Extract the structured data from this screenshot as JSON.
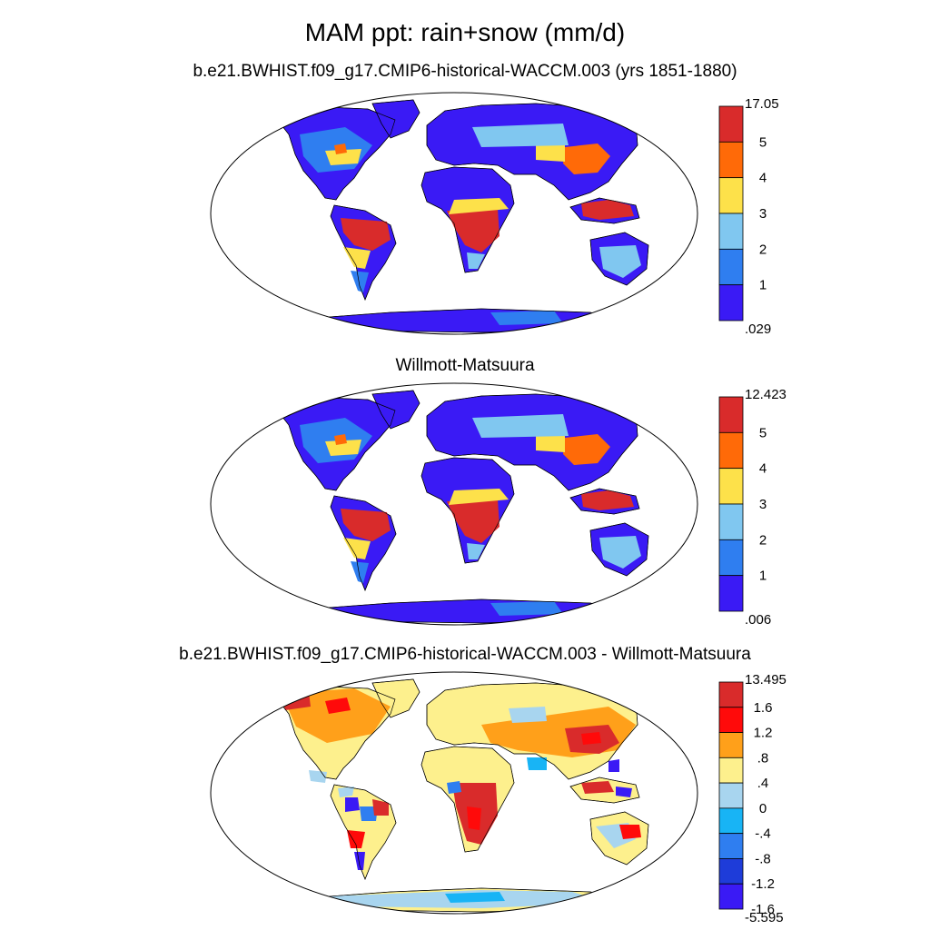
{
  "title": "MAM ppt: rain+snow (mm/d)",
  "panels": [
    {
      "title": "b.e21.BWHIST.f09_g17.CMIP6-historical-WACCM.003 (yrs 1851-1880)",
      "kind": "abs",
      "colorbar": {
        "colors": [
          "#3a1af5",
          "#2f7ef0",
          "#80c7f0",
          "#fde14a",
          "#ff6a08",
          "#d92b2b"
        ],
        "labels": [
          "17.05",
          "5",
          "4",
          "3",
          "2",
          "1",
          ".029"
        ]
      }
    },
    {
      "title": "Willmott-Matsuura",
      "kind": "abs",
      "colorbar": {
        "colors": [
          "#3a1af5",
          "#2f7ef0",
          "#80c7f0",
          "#fde14a",
          "#ff6a08",
          "#d92b2b"
        ],
        "labels": [
          "12.423",
          "5",
          "4",
          "3",
          "2",
          "1",
          ".006"
        ]
      }
    },
    {
      "title": "b.e21.BWHIST.f09_g17.CMIP6-historical-WACCM.003 - Willmott-Matsuura",
      "kind": "diff",
      "colorbar": {
        "colors": [
          "#3a1af5",
          "#1e3cd9",
          "#2f7ef0",
          "#18b4f5",
          "#a8d5ef",
          "#fdf08d",
          "#ffa01a",
          "#ff0a0a",
          "#d92b2b"
        ],
        "labels": [
          "13.495",
          "1.6",
          "1.2",
          ".8",
          ".4",
          "0",
          "-.4",
          "-.8",
          "-1.2",
          "-1.6",
          "-5.595"
        ]
      }
    }
  ]
}
